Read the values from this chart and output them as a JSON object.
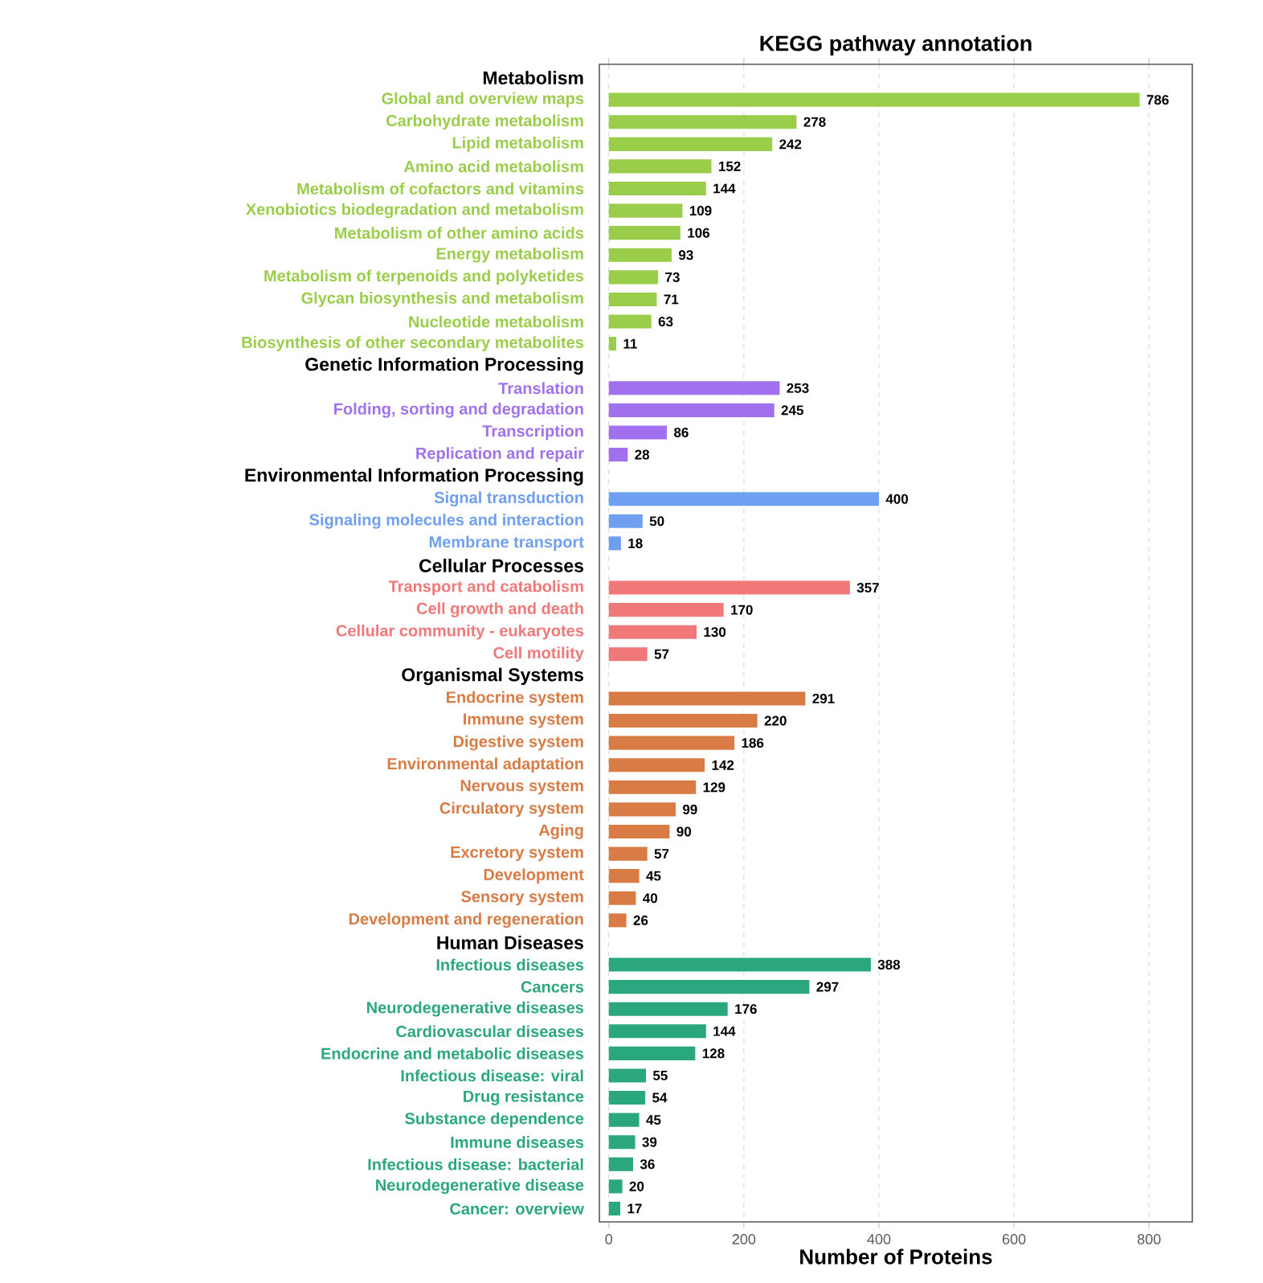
{
  "chart_data": {
    "type": "bar",
    "orientation": "horizontal",
    "title": "KEGG pathway annotation",
    "xlabel": "Number of Proteins",
    "categories": [
      null,
      "Global and overview maps",
      "Carbohydrate metabolism",
      "Lipid metabolism",
      "Amino acid metabolism",
      "Metabolism of cofactors and vitamins",
      "Xenobiotics biodegradation and metabolism",
      "Metabolism of other amino acids",
      "Energy metabolism",
      "Metabolism of terpenoids and polyketides",
      "Glycan biosynthesis and metabolism",
      "Nucleotide metabolism",
      "Biosynthesis of other secondary metabolites",
      null,
      "Translation",
      "Folding, sorting and degradation",
      "Transcription",
      "Replication and repair",
      null,
      "Signal transduction",
      "Signaling molecules and interaction",
      "Membrane transport",
      null,
      "Transport and catabolism",
      "Cell growth and death",
      "Cellular community - eukaryotes",
      "Cell motility",
      null,
      "Endocrine system",
      "Immune system",
      "Digestive system",
      "Environmental adaptation",
      "Nervous system",
      "Circulatory system",
      "Aging",
      "Excretory system",
      "Development",
      "Sensory system",
      "Development and regeneration",
      null,
      "Infectious diseases",
      "Cancers",
      "Neurodegenerative diseases",
      "Cardiovascular diseases",
      "Endocrine and metabolic diseases",
      "Infectious disease: viral",
      "Drug resistance",
      "Substance dependence",
      "Immune diseases",
      "Infectious disease: bacterial",
      "Neurodegenerative disease",
      "Cancer: overview"
    ],
    "series": [
      {
        "name": "Metabolism",
        "color": "#9acd4a",
        "values": [
          null,
          786,
          278,
          242,
          152,
          144,
          109,
          106,
          93,
          73,
          71,
          63,
          11,
          null,
          null,
          null,
          null,
          null,
          null,
          null,
          null,
          null,
          null,
          null,
          null,
          null,
          null,
          null,
          null,
          null,
          null,
          null,
          null,
          null,
          null,
          null,
          null,
          null,
          null,
          null,
          null,
          null,
          null,
          null,
          null,
          null,
          null,
          null,
          null,
          null,
          null,
          null
        ]
      },
      {
        "name": "Genetic Information Processing",
        "color": "#a070ee",
        "values": [
          null,
          null,
          null,
          null,
          null,
          null,
          null,
          null,
          null,
          null,
          null,
          null,
          null,
          null,
          253,
          245,
          86,
          28,
          null,
          null,
          null,
          null,
          null,
          null,
          null,
          null,
          null,
          null,
          null,
          null,
          null,
          null,
          null,
          null,
          null,
          null,
          null,
          null,
          null,
          null,
          null,
          null,
          null,
          null,
          null,
          null,
          null,
          null,
          null,
          null,
          null,
          null
        ]
      },
      {
        "name": "Environmental Information Processing",
        "color": "#6f9ff0",
        "values": [
          null,
          null,
          null,
          null,
          null,
          null,
          null,
          null,
          null,
          null,
          null,
          null,
          null,
          null,
          null,
          null,
          null,
          null,
          null,
          400,
          50,
          18,
          null,
          null,
          null,
          null,
          null,
          null,
          null,
          null,
          null,
          null,
          null,
          null,
          null,
          null,
          null,
          null,
          null,
          null,
          null,
          null,
          null,
          null,
          null,
          null,
          null,
          null,
          null,
          null,
          null,
          null
        ]
      },
      {
        "name": "Cellular Processes",
        "color": "#f07878",
        "values": [
          null,
          null,
          null,
          null,
          null,
          null,
          null,
          null,
          null,
          null,
          null,
          null,
          null,
          null,
          null,
          null,
          null,
          null,
          null,
          null,
          null,
          null,
          null,
          357,
          170,
          130,
          57,
          null,
          null,
          null,
          null,
          null,
          null,
          null,
          null,
          null,
          null,
          null,
          null,
          null,
          null,
          null,
          null,
          null,
          null,
          null,
          null,
          null,
          null,
          null,
          null,
          null
        ]
      },
      {
        "name": "Organismal Systems",
        "color": "#d97b45",
        "values": [
          null,
          null,
          null,
          null,
          null,
          null,
          null,
          null,
          null,
          null,
          null,
          null,
          null,
          null,
          null,
          null,
          null,
          null,
          null,
          null,
          null,
          null,
          null,
          null,
          null,
          null,
          null,
          null,
          291,
          220,
          186,
          142,
          129,
          99,
          90,
          57,
          45,
          40,
          26,
          null,
          null,
          null,
          null,
          null,
          null,
          null,
          null,
          null,
          null,
          null,
          null,
          null
        ]
      },
      {
        "name": "Human Diseases",
        "color": "#2aa77e",
        "values": [
          null,
          null,
          null,
          null,
          null,
          null,
          null,
          null,
          null,
          null,
          null,
          null,
          null,
          null,
          null,
          null,
          null,
          null,
          null,
          null,
          null,
          null,
          null,
          null,
          null,
          null,
          null,
          null,
          null,
          null,
          null,
          null,
          null,
          null,
          null,
          null,
          null,
          null,
          null,
          null,
          388,
          297,
          176,
          144,
          128,
          55,
          54,
          45,
          39,
          36,
          20,
          17
        ]
      }
    ],
    "xlim": [
      -14,
      864
    ],
    "xticks": [
      0,
      200,
      400,
      600,
      800
    ],
    "grid": "x",
    "data_labels": true
  }
}
